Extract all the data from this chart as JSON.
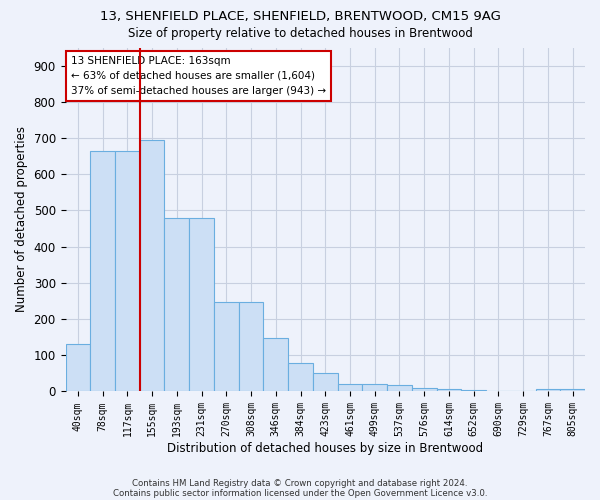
{
  "title1": "13, SHENFIELD PLACE, SHENFIELD, BRENTWOOD, CM15 9AG",
  "title2": "Size of property relative to detached houses in Brentwood",
  "xlabel": "Distribution of detached houses by size in Brentwood",
  "ylabel": "Number of detached properties",
  "bar_labels": [
    "40sqm",
    "78sqm",
    "117sqm",
    "155sqm",
    "193sqm",
    "231sqm",
    "270sqm",
    "308sqm",
    "346sqm",
    "384sqm",
    "423sqm",
    "461sqm",
    "499sqm",
    "537sqm",
    "576sqm",
    "614sqm",
    "652sqm",
    "690sqm",
    "729sqm",
    "767sqm",
    "805sqm"
  ],
  "bar_values": [
    130,
    665,
    665,
    695,
    480,
    480,
    247,
    247,
    148,
    80,
    50,
    22,
    20,
    17,
    10,
    7,
    5,
    0,
    0,
    7,
    7
  ],
  "bar_color": "#ccdff5",
  "bar_edge_color": "#6aaee0",
  "background_color": "#eef2fb",
  "grid_color": "#c8d0e0",
  "vline_color": "#cc0000",
  "annotation_text": "13 SHENFIELD PLACE: 163sqm\n← 63% of detached houses are smaller (1,604)\n37% of semi-detached houses are larger (943) →",
  "annotation_box_color": "white",
  "annotation_box_edge": "#cc0000",
  "ylim": [
    0,
    950
  ],
  "yticks": [
    0,
    100,
    200,
    300,
    400,
    500,
    600,
    700,
    800,
    900
  ],
  "footnote1": "Contains HM Land Registry data © Crown copyright and database right 2024.",
  "footnote2": "Contains public sector information licensed under the Open Government Licence v3.0."
}
